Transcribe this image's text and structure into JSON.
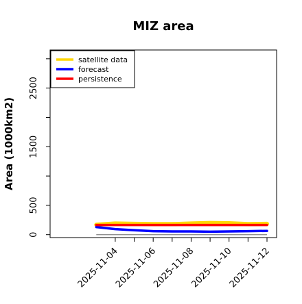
{
  "chart_data": {
    "type": "line",
    "title": "MIZ area",
    "xlabel": "",
    "ylabel": "Area (1000km2)",
    "x": [
      "2025-11-03",
      "2025-11-04",
      "2025-11-05",
      "2025-11-06",
      "2025-11-07",
      "2025-11-08",
      "2025-11-09",
      "2025-11-10",
      "2025-11-11",
      "2025-11-12"
    ],
    "x_ticks": [
      "2025-11-04",
      "2025-11-06",
      "2025-11-08",
      "2025-11-10",
      "2025-11-12"
    ],
    "x_tick_colors": [
      "#228b22",
      "#000000",
      "#000000",
      "#000000",
      "#000000"
    ],
    "xlim": [
      "2025-11-01",
      "2025-11-12"
    ],
    "ylim": [
      -50,
      3150
    ],
    "y_ticks": [
      0,
      500,
      1500,
      2500
    ],
    "grid": false,
    "legend_position": "top-left",
    "series": [
      {
        "name": "satellite data",
        "color": "#ffd700",
        "values": [
          170,
          190,
          185,
          180,
          180,
          190,
          200,
          195,
          180,
          185
        ]
      },
      {
        "name": "forecast",
        "color": "#0000ff",
        "values": [
          130,
          95,
          75,
          60,
          55,
          55,
          50,
          55,
          60,
          65
        ]
      },
      {
        "name": "persistence",
        "color": "#ff0000",
        "values": [
          165,
          165,
          165,
          165,
          165,
          165,
          165,
          165,
          165,
          165
        ]
      }
    ],
    "reference_line": {
      "value": 0,
      "color": "#808080"
    }
  }
}
